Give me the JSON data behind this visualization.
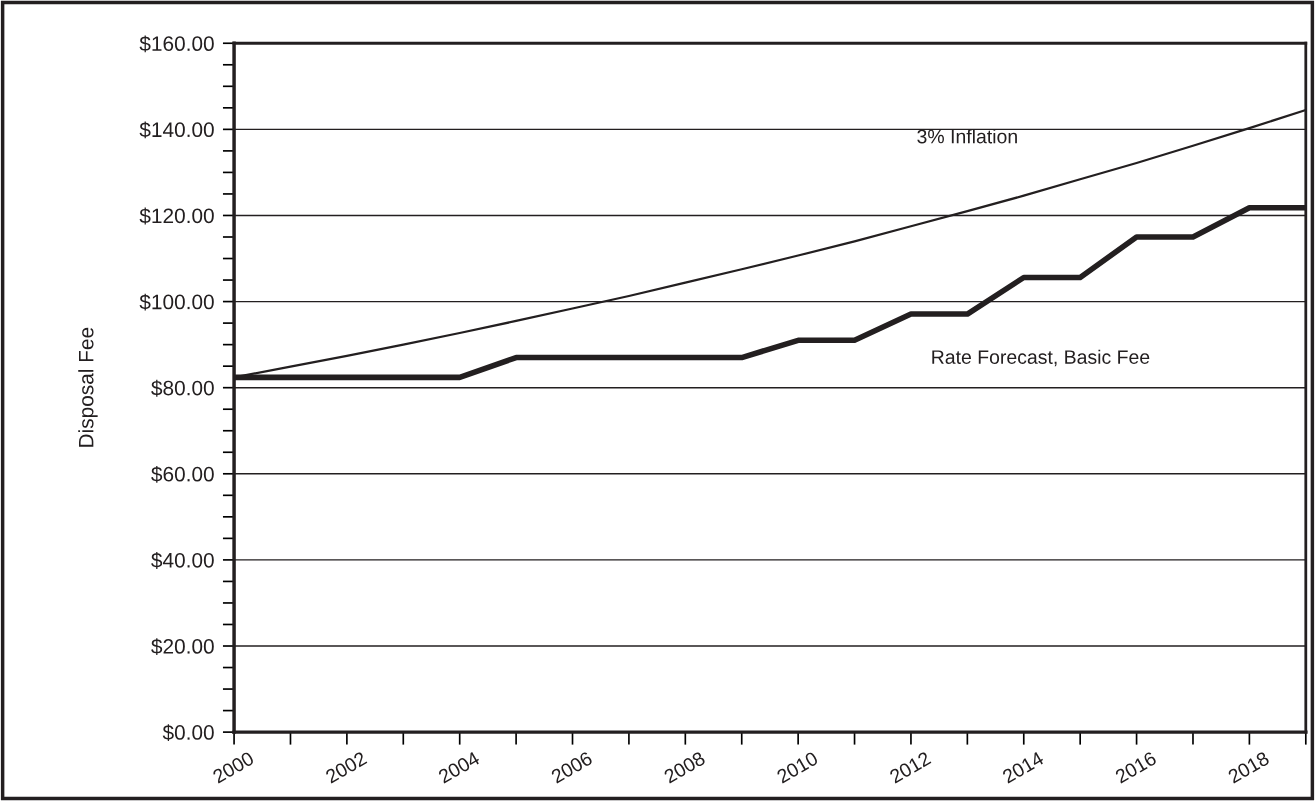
{
  "chart_data": {
    "type": "line",
    "ylabel": "Disposal Fee",
    "x": [
      2000,
      2001,
      2002,
      2003,
      2004,
      2005,
      2006,
      2007,
      2008,
      2009,
      2010,
      2011,
      2012,
      2013,
      2014,
      2015,
      2016,
      2017,
      2018,
      2019
    ],
    "series": [
      {
        "name": "3% Inflation",
        "color": "#231f20",
        "values": [
          82.4,
          84.9,
          87.4,
          90.0,
          92.7,
          95.5,
          98.4,
          101.3,
          104.4,
          107.5,
          110.7,
          114.0,
          117.5,
          121.0,
          124.6,
          128.4,
          132.2,
          136.2,
          140.3,
          144.5
        ]
      },
      {
        "name": "Rate Forecast, Basic Fee",
        "color": "#231f20",
        "values": [
          82.4,
          82.4,
          82.4,
          82.4,
          82.4,
          87.0,
          87.0,
          87.0,
          87.0,
          87.0,
          91.0,
          91.0,
          97.1,
          97.1,
          105.6,
          105.6,
          115.0,
          115.0,
          121.8,
          121.8
        ]
      }
    ],
    "xlim": [
      2000,
      2019
    ],
    "xticks": [
      2000,
      {
        "value": 2001,
        "label": null
      },
      2002,
      {
        "value": 2003,
        "label": null
      },
      2004,
      {
        "value": 2005,
        "label": null
      },
      2006,
      {
        "value": 2007,
        "label": null
      },
      2008,
      {
        "value": 2009,
        "label": null
      },
      2010,
      {
        "value": 2011,
        "label": null
      },
      2012,
      {
        "value": 2013,
        "label": null
      },
      2014,
      {
        "value": 2015,
        "label": null
      },
      2016,
      {
        "value": 2017,
        "label": null
      },
      2018,
      {
        "value": 2019,
        "label": null
      }
    ],
    "ylim": [
      0,
      160
    ],
    "yticks": [
      {
        "value": 0,
        "label": "$0.00"
      },
      {
        "value": 5,
        "label": null
      },
      {
        "value": 10,
        "label": null
      },
      {
        "value": 15,
        "label": null
      },
      {
        "value": 20,
        "label": "$20.00"
      },
      {
        "value": 25,
        "label": null
      },
      {
        "value": 30,
        "label": null
      },
      {
        "value": 35,
        "label": null
      },
      {
        "value": 40,
        "label": "$40.00"
      },
      {
        "value": 45,
        "label": null
      },
      {
        "value": 50,
        "label": null
      },
      {
        "value": 55,
        "label": null
      },
      {
        "value": 60,
        "label": "$60.00"
      },
      {
        "value": 65,
        "label": null
      },
      {
        "value": 70,
        "label": null
      },
      {
        "value": 75,
        "label": null
      },
      {
        "value": 80,
        "label": "$80.00"
      },
      {
        "value": 85,
        "label": null
      },
      {
        "value": 90,
        "label": null
      },
      {
        "value": 95,
        "label": null
      },
      {
        "value": 100,
        "label": "$100.00"
      },
      {
        "value": 105,
        "label": null
      },
      {
        "value": 110,
        "label": null
      },
      {
        "value": 115,
        "label": null
      },
      {
        "value": 120,
        "label": "$120.00"
      },
      {
        "value": 125,
        "label": null
      },
      {
        "value": 130,
        "label": null
      },
      {
        "value": 135,
        "label": null
      },
      {
        "value": 140,
        "label": "$140.00"
      },
      {
        "value": 145,
        "label": null
      },
      {
        "value": 150,
        "label": null
      },
      {
        "value": 155,
        "label": null
      },
      {
        "value": 160,
        "label": "$160.00"
      }
    ],
    "grid": "y",
    "legend": false,
    "marker": "none",
    "line_style": "solid"
  }
}
